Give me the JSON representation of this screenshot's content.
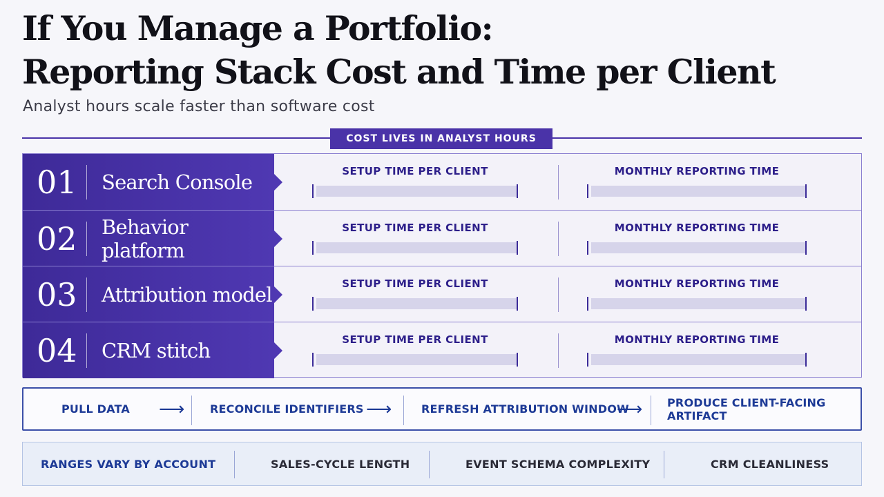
{
  "header": {
    "title_line1": "If You Manage a Portfolio:",
    "title_line2": "Reporting Stack Cost and Time per Client",
    "subtitle": "Analyst hours scale faster than software cost"
  },
  "tag": "COST LIVES IN ANALYST HOURS",
  "metrics": {
    "setup_label": "SETUP TIME PER CLIENT",
    "monthly_label": "MONTHLY REPORTING TIME"
  },
  "rows": [
    {
      "num": "01",
      "tool": "Search Console"
    },
    {
      "num": "02",
      "tool": "Behavior platform"
    },
    {
      "num": "03",
      "tool": "Attribution model"
    },
    {
      "num": "04",
      "tool": "CRM stitch"
    }
  ],
  "flow": {
    "steps": [
      "PULL DATA",
      "RECONCILE IDENTIFIERS",
      "REFRESH ATTRIBUTION WINDOW",
      "PRODUCE CLIENT-FACING ARTIFACT"
    ],
    "arrow": "⟶"
  },
  "factors": {
    "lead": "RANGES VARY BY ACCOUNT",
    "items": [
      "SALES-CYCLE LENGTH",
      "EVENT SCHEMA COMPLEXITY",
      "CRM CLEANLINESS"
    ]
  },
  "colors": {
    "accent": "#4a33a8",
    "flow_text": "#1d3a96",
    "bar_fill": "#d6d4ea"
  }
}
